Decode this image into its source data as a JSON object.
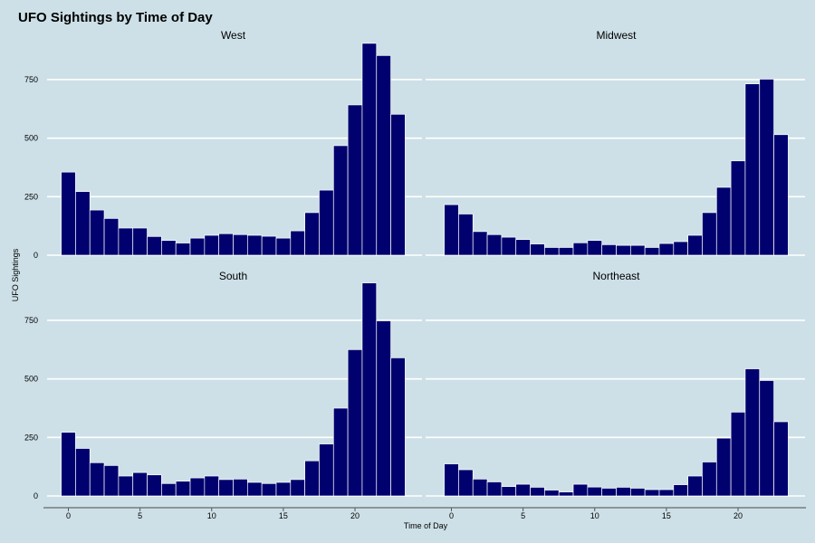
{
  "chart_data": {
    "type": "bar",
    "title": "UFO Sightings by Time of Day",
    "xlabel": "Time of Day",
    "ylabel": "UFO Sightings",
    "x": [
      0,
      1,
      2,
      3,
      4,
      5,
      6,
      7,
      8,
      9,
      10,
      11,
      12,
      13,
      14,
      15,
      16,
      17,
      18,
      19,
      20,
      21,
      22,
      23
    ],
    "xticks": [
      0,
      5,
      10,
      15,
      20
    ],
    "yticks": [
      0,
      250,
      500,
      750
    ],
    "ylim": [
      0,
      920
    ],
    "xlim": [
      -0.6,
      23.6
    ],
    "grid": true,
    "bar_color": "#00006e",
    "panels": [
      {
        "name": "West",
        "values": [
          355,
          272,
          193,
          157,
          116,
          116,
          80,
          63,
          52,
          73,
          85,
          92,
          88,
          85,
          81,
          73,
          104,
          182,
          278,
          468,
          642,
          905,
          853,
          602
        ]
      },
      {
        "name": "Midwest",
        "values": [
          216,
          176,
          101,
          88,
          77,
          67,
          48,
          33,
          33,
          53,
          63,
          45,
          42,
          42,
          33,
          50,
          58,
          85,
          182,
          290,
          403,
          732,
          752,
          515
        ]
      },
      {
        "name": "South",
        "values": [
          272,
          203,
          142,
          130,
          85,
          100,
          90,
          53,
          63,
          77,
          85,
          70,
          72,
          58,
          53,
          58,
          70,
          150,
          222,
          375,
          625,
          910,
          748,
          590
        ]
      },
      {
        "name": "Northeast",
        "values": [
          137,
          112,
          72,
          60,
          40,
          50,
          37,
          25,
          17,
          50,
          38,
          33,
          37,
          33,
          27,
          27,
          48,
          85,
          145,
          247,
          358,
          543,
          493,
          317
        ]
      }
    ]
  }
}
